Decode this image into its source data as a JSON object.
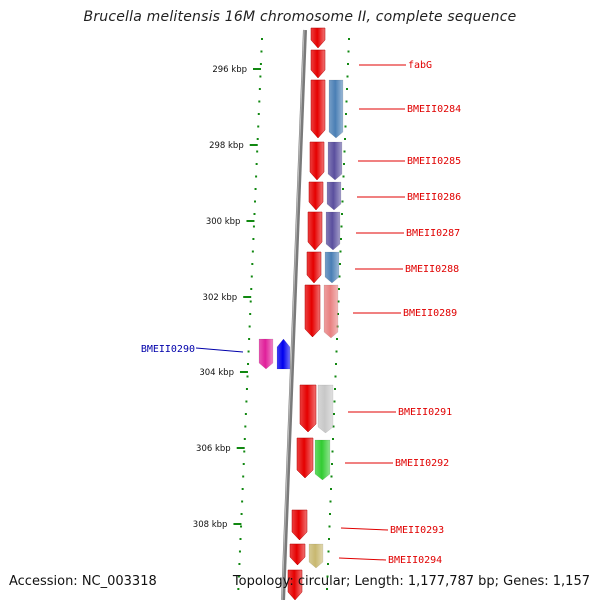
{
  "title": "Brucella melitensis 16M chromosome II, complete sequence",
  "footer": {
    "accession": "Accession: NC_003318",
    "summary": "Topology: circular; Length: 1,177,787 bp; Genes: 1,157"
  },
  "colors": {
    "backbone": "#7a7a7a",
    "ticks": "#118811",
    "cds": "#e50000",
    "left_label": "#0000aa",
    "right_label": "#e00000"
  },
  "scale_ticks": [
    "296 kbp",
    "298 kbp",
    "300 kbp",
    "302 kbp",
    "304 kbp",
    "306 kbp",
    "308 kbp"
  ],
  "genes": [
    {
      "name": "fabG",
      "side": "right",
      "color": "#e50000"
    },
    {
      "name": "BMEII0284",
      "side": "right",
      "color": "#4a7fb5"
    },
    {
      "name": "BMEII0285",
      "side": "right",
      "color": "#5a4f9e"
    },
    {
      "name": "BMEII0286",
      "side": "right",
      "color": "#5a4f9e"
    },
    {
      "name": "BMEII0287",
      "side": "right",
      "color": "#5a4f9e"
    },
    {
      "name": "BMEII0288",
      "side": "right",
      "color": "#4a7fb5"
    },
    {
      "name": "BMEII0289",
      "side": "right",
      "color": "#e88080"
    },
    {
      "name": "BMEII0290",
      "side": "left",
      "color": "#e0209a"
    },
    {
      "name": "BMEII0291",
      "side": "right",
      "color": "#c8c8c8"
    },
    {
      "name": "BMEII0292",
      "side": "right",
      "color": "#33cc33"
    },
    {
      "name": "BMEII0293",
      "side": "right",
      "color": "#e50000"
    },
    {
      "name": "BMEII0294",
      "side": "right",
      "color": "#c8b870"
    }
  ]
}
